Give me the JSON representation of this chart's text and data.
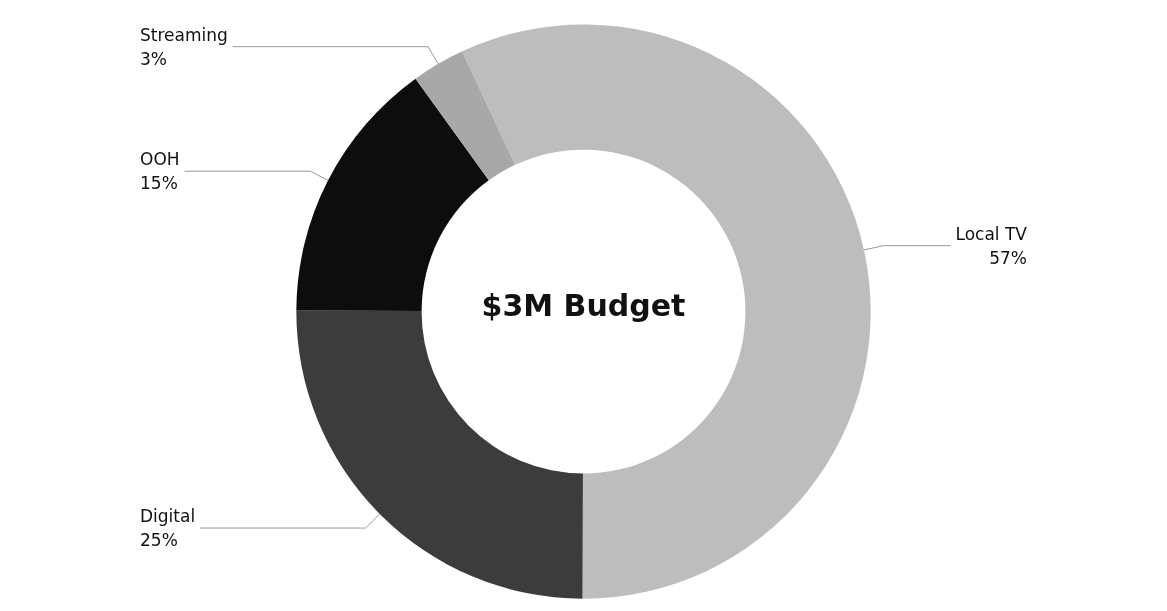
{
  "chart_data": {
    "type": "donut",
    "title": "$3M Budget",
    "categories": [
      "Local TV",
      "Digital",
      "OOH",
      "Streaming"
    ],
    "values": [
      57,
      25,
      15,
      3
    ],
    "colors": [
      "#bdbdbd",
      "#3c3c3c",
      "#0d0d0d",
      "#a8a8a8"
    ],
    "value_labels": [
      "57%",
      "25%",
      "15%",
      "3%"
    ]
  }
}
